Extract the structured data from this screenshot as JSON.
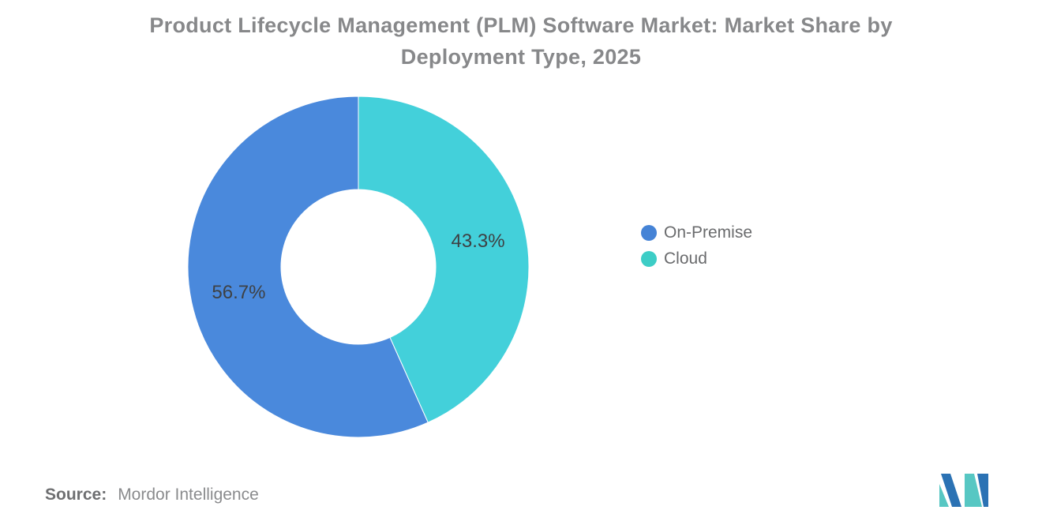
{
  "title": "Product Lifecycle Management (PLM) Software Market: Market Share by Deployment Type, 2025",
  "source": {
    "prefix": "Source:",
    "name": "Mordor Intelligence"
  },
  "logo": {
    "name": "mordor-intelligence-logo",
    "blue": "#2b72b4",
    "teal": "#57c7c3"
  },
  "chart_data": {
    "type": "pie",
    "donut": true,
    "title": "Product Lifecycle Management (PLM) Software Market: Market Share by Deployment Type, 2025",
    "categories": [
      "On-Premise",
      "Cloud"
    ],
    "values": [
      56.7,
      43.3
    ],
    "unit": "%",
    "slices": [
      {
        "label": "On-Premise",
        "value": 56.7,
        "display": "56.7%",
        "color": "#4a89dc",
        "legend_color": "#4583d6"
      },
      {
        "label": "Cloud",
        "value": 43.3,
        "display": "43.3%",
        "color": "#43d0da",
        "legend_color": "#3dcdc6"
      }
    ],
    "start_angle": "top",
    "direction": "counterclockwise",
    "inner_radius_ratio": 0.455,
    "legend_position": "right",
    "label_text_color": "#3e4144"
  }
}
